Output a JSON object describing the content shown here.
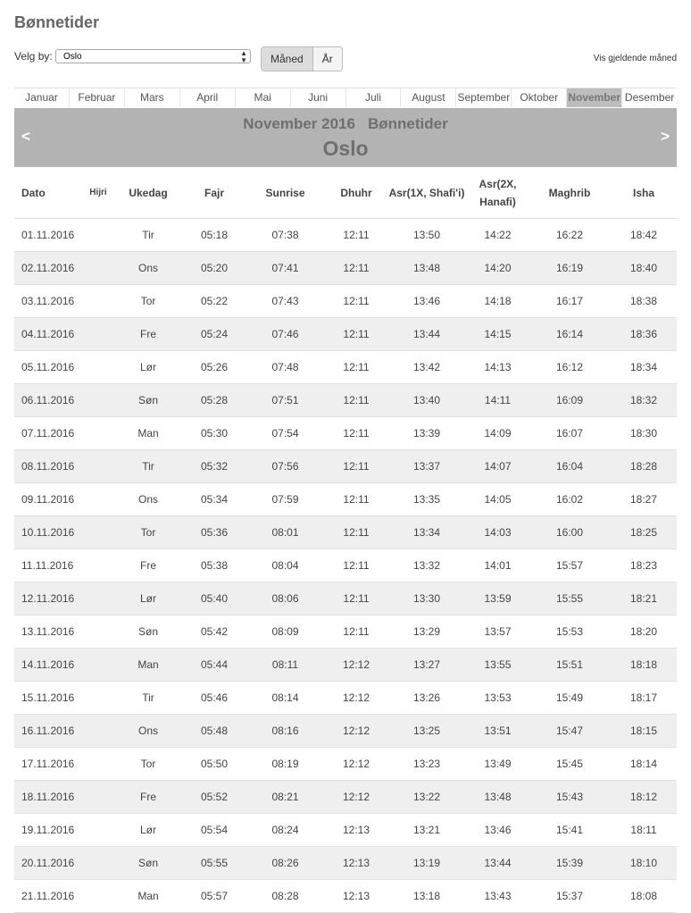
{
  "page": {
    "title": "Bønnetider"
  },
  "controls": {
    "city_label": "Velg by:",
    "city_value": "Oslo",
    "view_toggle": [
      "Måned",
      "År"
    ],
    "current_month_link": "Vis gjeldende måned"
  },
  "months": [
    "Januar",
    "Februar",
    "Mars",
    "April",
    "Mai",
    "Juni",
    "Juli",
    "August",
    "September",
    "Oktober",
    "November",
    "Desember"
  ],
  "active_month": "November",
  "banner": {
    "month_year": "November 2016",
    "label": "Bønnetider",
    "city": "Oslo",
    "prev": "<",
    "next": ">"
  },
  "table": {
    "headers": [
      "Dato",
      "Hijri",
      "Ukedag",
      "Fajr",
      "Sunrise",
      "Dhuhr",
      "Asr(1X, Shafi'i)",
      "Asr(2X, Hanafi)",
      "Maghrib",
      "Isha"
    ],
    "rows": [
      [
        "01.11.2016",
        "",
        "Tir",
        "05:18",
        "07:38",
        "12:11",
        "13:50",
        "14:22",
        "16:22",
        "18:42"
      ],
      [
        "02.11.2016",
        "",
        "Ons",
        "05:20",
        "07:41",
        "12:11",
        "13:48",
        "14:20",
        "16:19",
        "18:40"
      ],
      [
        "03.11.2016",
        "",
        "Tor",
        "05:22",
        "07:43",
        "12:11",
        "13:46",
        "14:18",
        "16:17",
        "18:38"
      ],
      [
        "04.11.2016",
        "",
        "Fre",
        "05:24",
        "07:46",
        "12:11",
        "13:44",
        "14:15",
        "16:14",
        "18:36"
      ],
      [
        "05.11.2016",
        "",
        "Lør",
        "05:26",
        "07:48",
        "12:11",
        "13:42",
        "14:13",
        "16:12",
        "18:34"
      ],
      [
        "06.11.2016",
        "",
        "Søn",
        "05:28",
        "07:51",
        "12:11",
        "13:40",
        "14:11",
        "16:09",
        "18:32"
      ],
      [
        "07.11.2016",
        "",
        "Man",
        "05:30",
        "07:54",
        "12:11",
        "13:39",
        "14:09",
        "16:07",
        "18:30"
      ],
      [
        "08.11.2016",
        "",
        "Tir",
        "05:32",
        "07:56",
        "12:11",
        "13:37",
        "14:07",
        "16:04",
        "18:28"
      ],
      [
        "09.11.2016",
        "",
        "Ons",
        "05:34",
        "07:59",
        "12:11",
        "13:35",
        "14:05",
        "16:02",
        "18:27"
      ],
      [
        "10.11.2016",
        "",
        "Tor",
        "05:36",
        "08:01",
        "12:11",
        "13:34",
        "14:03",
        "16:00",
        "18:25"
      ],
      [
        "11.11.2016",
        "",
        "Fre",
        "05:38",
        "08:04",
        "12:11",
        "13:32",
        "14:01",
        "15:57",
        "18:23"
      ],
      [
        "12.11.2016",
        "",
        "Lør",
        "05:40",
        "08:06",
        "12:11",
        "13:30",
        "13:59",
        "15:55",
        "18:21"
      ],
      [
        "13.11.2016",
        "",
        "Søn",
        "05:42",
        "08:09",
        "12:11",
        "13:29",
        "13:57",
        "15:53",
        "18:20"
      ],
      [
        "14.11.2016",
        "",
        "Man",
        "05:44",
        "08:11",
        "12:12",
        "13:27",
        "13:55",
        "15:51",
        "18:18"
      ],
      [
        "15.11.2016",
        "",
        "Tir",
        "05:46",
        "08:14",
        "12:12",
        "13:26",
        "13:53",
        "15:49",
        "18:17"
      ],
      [
        "16.11.2016",
        "",
        "Ons",
        "05:48",
        "08:16",
        "12:12",
        "13:25",
        "13:51",
        "15:47",
        "18:15"
      ],
      [
        "17.11.2016",
        "",
        "Tor",
        "05:50",
        "08:19",
        "12:12",
        "13:23",
        "13:49",
        "15:45",
        "18:14"
      ],
      [
        "18.11.2016",
        "",
        "Fre",
        "05:52",
        "08:21",
        "12:12",
        "13:22",
        "13:48",
        "15:43",
        "18:12"
      ],
      [
        "19.11.2016",
        "",
        "Lør",
        "05:54",
        "08:24",
        "12:13",
        "13:21",
        "13:46",
        "15:41",
        "18:11"
      ],
      [
        "20.11.2016",
        "",
        "Søn",
        "05:55",
        "08:26",
        "12:13",
        "13:19",
        "13:44",
        "15:39",
        "18:10"
      ],
      [
        "21.11.2016",
        "",
        "Man",
        "05:57",
        "08:28",
        "12:13",
        "13:18",
        "13:43",
        "15:37",
        "18:08"
      ]
    ]
  }
}
